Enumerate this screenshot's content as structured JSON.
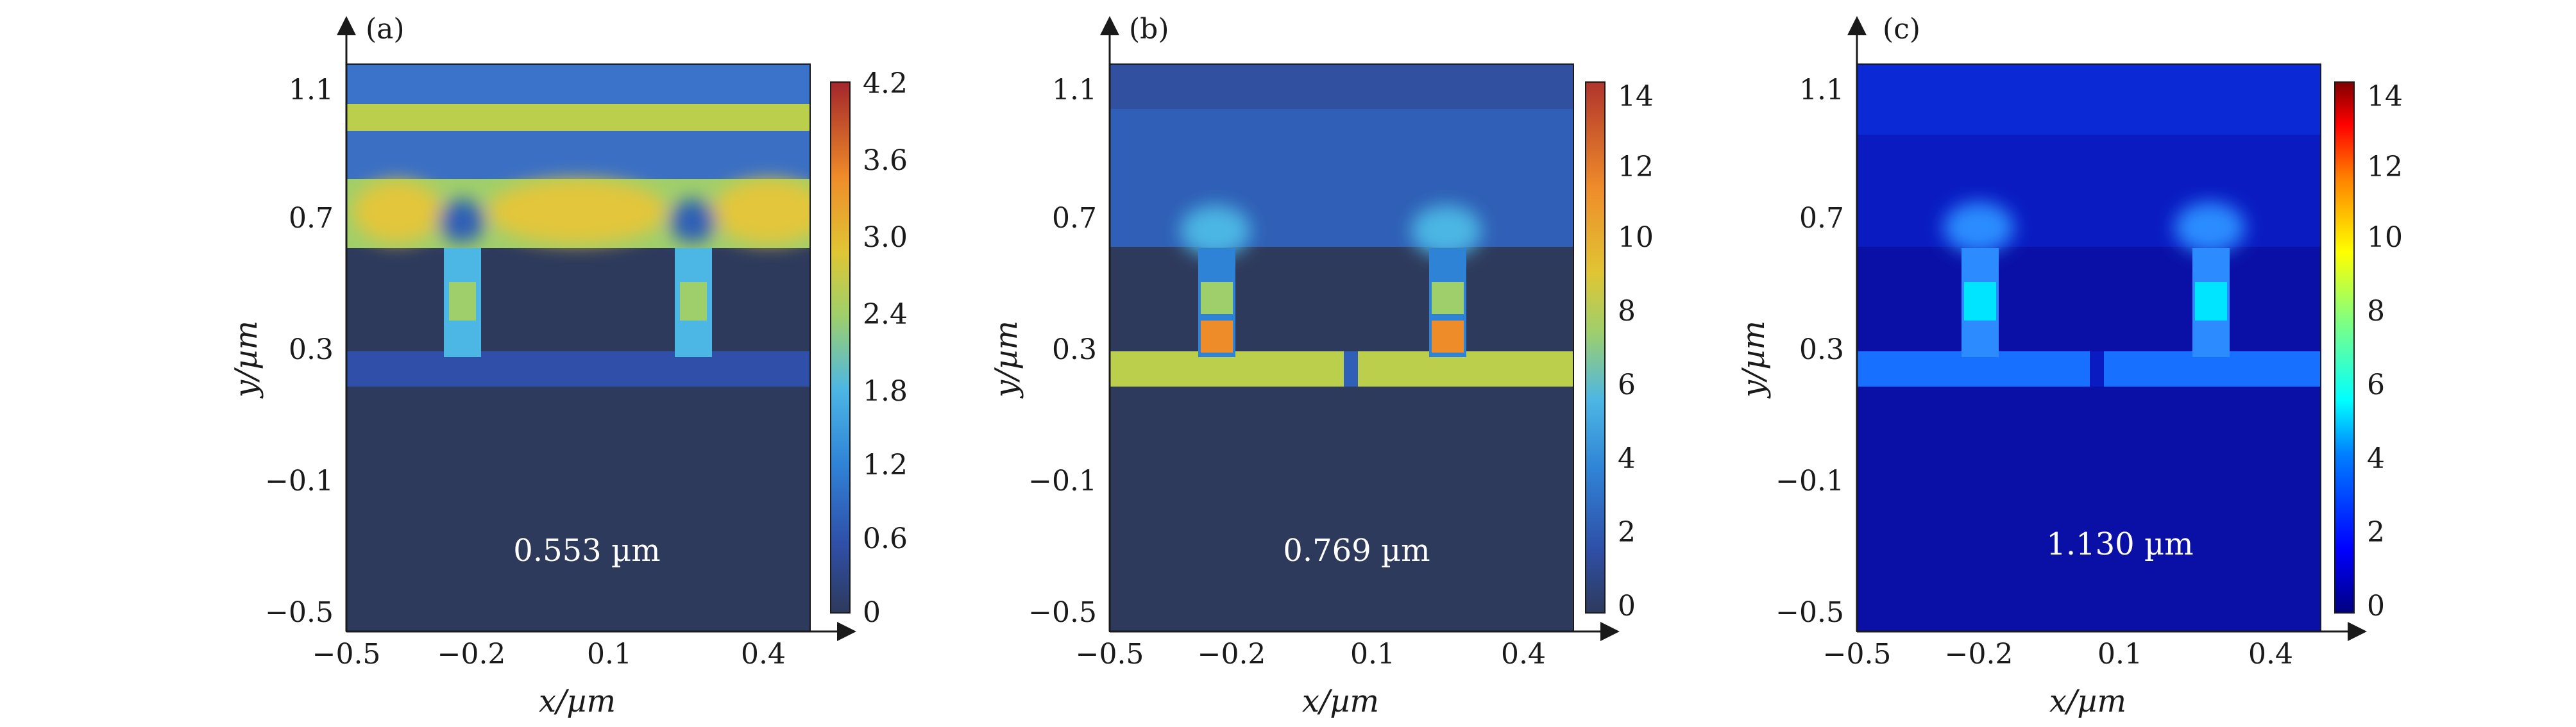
{
  "chart_data": [
    {
      "type": "heatmap",
      "panel_label": "(a)",
      "wavelength_label": "0.553 µm",
      "xlabel": "x/µm",
      "ylabel": "y/µm",
      "x_ticks": [
        "−0.5",
        "−0.2",
        "0.1",
        "0.4"
      ],
      "y_ticks": [
        "1.1",
        "0.7",
        "0.3",
        "−0.1",
        "−0.5"
      ],
      "xlim": [
        -0.5,
        0.43
      ],
      "ylim": [
        -0.54,
        1.18
      ],
      "colorbar_ticks": [
        "0",
        "0.6",
        "1.2",
        "1.8",
        "2.4",
        "3.0",
        "3.6",
        "4.2"
      ],
      "colorbar_range": [
        0,
        4.4
      ],
      "colormap": "parula-like",
      "background_color": "#2e3a5c"
    },
    {
      "type": "heatmap",
      "panel_label": "(b)",
      "wavelength_label": "0.769 µm",
      "xlabel": "x/µm",
      "ylabel": "y/µm",
      "x_ticks": [
        "−0.5",
        "−0.2",
        "0.1",
        "0.4"
      ],
      "y_ticks": [
        "1.1",
        "0.7",
        "0.3",
        "−0.1",
        "−0.5"
      ],
      "xlim": [
        -0.5,
        0.43
      ],
      "ylim": [
        -0.54,
        1.18
      ],
      "colorbar_ticks": [
        "0",
        "2",
        "4",
        "6",
        "8",
        "10",
        "12",
        "14"
      ],
      "colorbar_range": [
        0,
        15
      ],
      "colormap": "parula-like",
      "background_color": "#2e3a5c"
    },
    {
      "type": "heatmap",
      "panel_label": "(c)",
      "wavelength_label": "1.130 µm",
      "xlabel": "x/µm",
      "ylabel": "y/µm",
      "x_ticks": [
        "−0.5",
        "−0.2",
        "0.1",
        "0.4"
      ],
      "y_ticks": [
        "1.1",
        "0.7",
        "0.3",
        "−0.1",
        "−0.5"
      ],
      "xlim": [
        -0.5,
        0.43
      ],
      "ylim": [
        -0.54,
        1.18
      ],
      "colorbar_ticks": [
        "0",
        "2",
        "4",
        "6",
        "8",
        "10",
        "12",
        "14"
      ],
      "colorbar_range": [
        0,
        15
      ],
      "colormap": "jet",
      "background_color": "#0a10a6"
    }
  ]
}
